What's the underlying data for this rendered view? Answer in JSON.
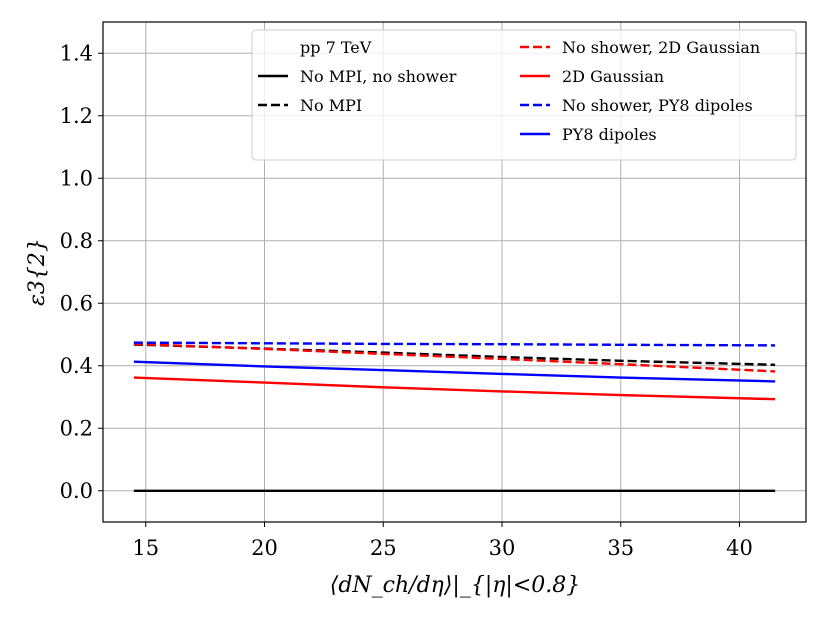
{
  "chart_data": {
    "type": "line",
    "title": "",
    "xlabel": "⟨dN_ch/dη⟩|_{|η|<0.8}",
    "ylabel": "ε3{2}",
    "xlim": [
      13.2,
      42.8
    ],
    "ylim": [
      -0.1,
      1.5
    ],
    "xticks": [
      15,
      20,
      25,
      30,
      35,
      40
    ],
    "yticks": [
      0.0,
      0.2,
      0.4,
      0.6,
      0.8,
      1.0,
      1.2,
      1.4
    ],
    "grid": true,
    "legend_title": "pp 7 TeV",
    "legend_position": "top-right",
    "series": [
      {
        "name": "No MPI, no shower",
        "color": "#000000",
        "dash": "solid",
        "x": [
          14.5,
          41.5
        ],
        "y": [
          0.0,
          0.0
        ]
      },
      {
        "name": "No MPI",
        "color": "#000000",
        "dash": "dashed",
        "x": [
          14.5,
          20,
          25,
          30,
          35,
          41.5
        ],
        "y": [
          0.468,
          0.455,
          0.442,
          0.428,
          0.416,
          0.403
        ]
      },
      {
        "name": "No shower, 2D Gaussian",
        "color": "#ff0000",
        "dash": "dashed",
        "x": [
          14.5,
          20,
          25,
          30,
          35,
          41.5
        ],
        "y": [
          0.47,
          0.454,
          0.438,
          0.422,
          0.405,
          0.382
        ]
      },
      {
        "name": "2D Gaussian",
        "color": "#ff0000",
        "dash": "solid",
        "x": [
          14.5,
          20,
          25,
          30,
          35,
          41.5
        ],
        "y": [
          0.362,
          0.346,
          0.331,
          0.318,
          0.306,
          0.293
        ]
      },
      {
        "name": "No shower, PY8 dipoles",
        "color": "#0000ff",
        "dash": "dashed",
        "x": [
          14.5,
          20,
          25,
          30,
          35,
          41.5
        ],
        "y": [
          0.474,
          0.472,
          0.47,
          0.469,
          0.467,
          0.465
        ]
      },
      {
        "name": "PY8 dipoles",
        "color": "#0000ff",
        "dash": "solid",
        "x": [
          14.5,
          20,
          25,
          30,
          35,
          41.5
        ],
        "y": [
          0.413,
          0.398,
          0.386,
          0.374,
          0.362,
          0.35
        ]
      }
    ],
    "legend_columns": [
      [
        "pp 7 TeV",
        "No MPI, no shower",
        "No MPI"
      ],
      [
        "No shower, 2D Gaussian",
        "2D Gaussian",
        "No shower, PY8 dipoles",
        "PY8 dipoles"
      ]
    ]
  }
}
